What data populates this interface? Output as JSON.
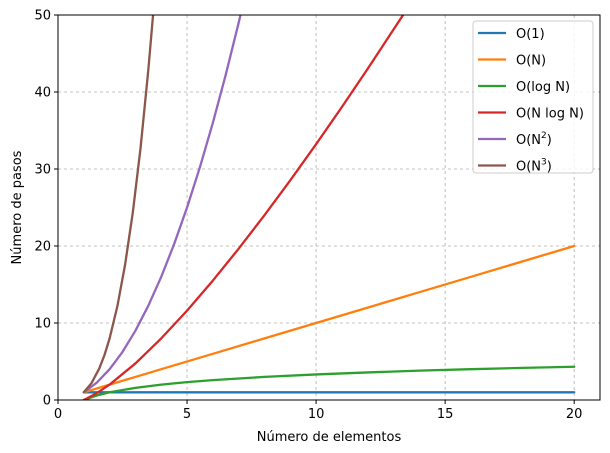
{
  "chart_data": {
    "type": "line",
    "xlabel": "Número de elementos",
    "ylabel": "Número de pasos",
    "xlim": [
      0,
      21
    ],
    "ylim": [
      0,
      50
    ],
    "x_ticks": [
      0,
      5,
      10,
      15,
      20
    ],
    "y_ticks": [
      0,
      10,
      20,
      30,
      40,
      50
    ],
    "grid": true,
    "grid_style": "dashed",
    "legend_position": "top-right",
    "series": [
      {
        "name": "O(1)",
        "label_main": "O(1)",
        "label_sup": "",
        "label_tail": "",
        "color": "#1f77b4",
        "x": [
          1,
          2,
          4,
          6,
          8,
          10,
          12,
          14,
          16,
          18,
          20
        ],
        "y": [
          1,
          1,
          1,
          1,
          1,
          1,
          1,
          1,
          1,
          1,
          1
        ]
      },
      {
        "name": "O(N)",
        "label_main": "O(N)",
        "label_sup": "",
        "label_tail": "",
        "color": "#ff7f0e",
        "x": [
          1,
          2,
          4,
          6,
          8,
          10,
          12,
          14,
          16,
          18,
          20
        ],
        "y": [
          1,
          2,
          4,
          6,
          8,
          10,
          12,
          14,
          16,
          18,
          20
        ]
      },
      {
        "name": "O(log N)",
        "label_main": "O(log N)",
        "label_sup": "",
        "label_tail": "",
        "color": "#2ca02c",
        "x": [
          1,
          1.5,
          2,
          3,
          4,
          5,
          6,
          8,
          10,
          12,
          14,
          16,
          18,
          20
        ],
        "y": [
          0,
          0.58,
          1.0,
          1.58,
          2.0,
          2.32,
          2.58,
          3.0,
          3.32,
          3.58,
          3.81,
          4.0,
          4.17,
          4.32
        ]
      },
      {
        "name": "O(N log N)",
        "label_main": "O(N log N)",
        "label_sup": "",
        "label_tail": "",
        "color": "#d62728",
        "x": [
          1,
          1.5,
          2,
          3,
          4,
          5,
          6,
          7,
          8,
          9,
          10,
          11,
          12,
          13,
          13.5
        ],
        "y": [
          0,
          0.88,
          2.0,
          4.75,
          8.0,
          11.61,
          15.51,
          19.65,
          24.0,
          28.53,
          33.22,
          38.05,
          43.02,
          48.11,
          50.66
        ]
      },
      {
        "name": "O(N²)",
        "label_main": "O(N",
        "label_sup": "2",
        "label_tail": ")",
        "color": "#9467bd",
        "x": [
          1,
          1.5,
          2,
          2.5,
          3,
          3.5,
          4,
          4.5,
          5,
          5.5,
          6,
          6.5,
          7,
          7.2
        ],
        "y": [
          1,
          2.25,
          4,
          6.25,
          9,
          12.25,
          16,
          20.25,
          25,
          30.25,
          36,
          42.25,
          49,
          51.84
        ]
      },
      {
        "name": "O(N³)",
        "label_main": "O(N",
        "label_sup": "3",
        "label_tail": ")",
        "color": "#8c564b",
        "x": [
          1,
          1.3,
          1.6,
          1.8,
          2.0,
          2.3,
          2.6,
          2.9,
          3.2,
          3.5,
          3.7
        ],
        "y": [
          1,
          2.2,
          4.1,
          5.83,
          8.0,
          12.17,
          17.58,
          24.39,
          32.77,
          42.88,
          50.65
        ]
      }
    ]
  }
}
